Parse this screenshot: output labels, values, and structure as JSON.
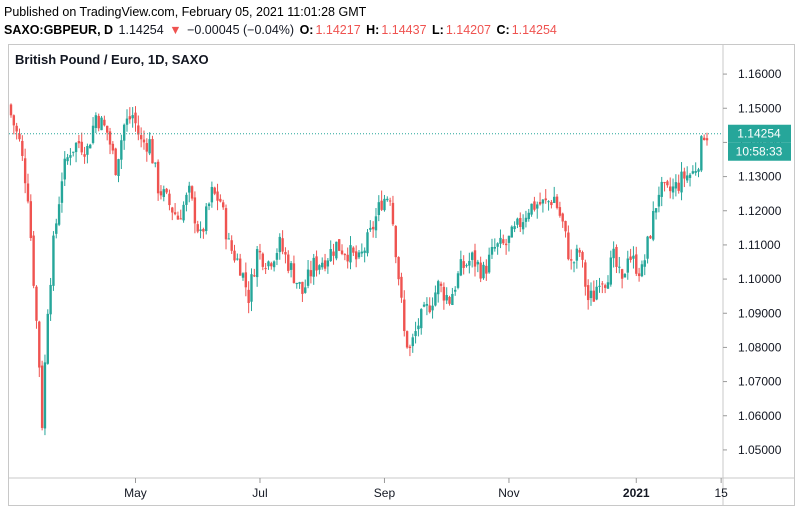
{
  "header": {
    "published": "Published on TradingView.com, February 05, 2021 11:01:28 GMT",
    "symbol": "SAXO:GBPEUR, D",
    "last": "1.14254",
    "down_arrow": "▼",
    "change": "−0.00045 (−0.04%)",
    "o_label": "O:",
    "o_value": "1.14217",
    "h_label": "H:",
    "h_value": "1.14437",
    "l_label": "L:",
    "l_value": "1.14207",
    "c_label": "C:",
    "c_value": "1.14254"
  },
  "colors": {
    "up": "#26a69a",
    "down": "#ef5350",
    "price_tag": "#26a69a"
  },
  "chart_data": {
    "type": "candlestick",
    "title": "British Pound / Euro, 1D, SAXO",
    "ylim": [
      1.045,
      1.165
    ],
    "y_ticks": [
      "1.16000",
      "1.15000",
      "1.14000",
      "1.13000",
      "1.12000",
      "1.11000",
      "1.10000",
      "1.09000",
      "1.08000",
      "1.07000",
      "1.06000",
      "1.05000"
    ],
    "x_ticks": [
      {
        "label": "May",
        "bar": 44
      },
      {
        "label": "Jul",
        "bar": 88
      },
      {
        "label": "Sep",
        "bar": 132
      },
      {
        "label": "Nov",
        "bar": 176
      },
      {
        "label": "2021",
        "bar": 221
      },
      {
        "label": "15",
        "bar": 251
      }
    ],
    "bar_count": 258,
    "last_price_label": "1.14254",
    "countdown_label": "10:58:33",
    "last_price": 1.14254,
    "anchors": [
      [
        0,
        1.148
      ],
      [
        3,
        1.14
      ],
      [
        6,
        1.125
      ],
      [
        8,
        1.1
      ],
      [
        10,
        1.075
      ],
      [
        11,
        1.058
      ],
      [
        13,
        1.092
      ],
      [
        15,
        1.11
      ],
      [
        18,
        1.13
      ],
      [
        21,
        1.138
      ],
      [
        24,
        1.14
      ],
      [
        27,
        1.138
      ],
      [
        30,
        1.148
      ],
      [
        34,
        1.143
      ],
      [
        37,
        1.133
      ],
      [
        40,
        1.145
      ],
      [
        43,
        1.148
      ],
      [
        46,
        1.14
      ],
      [
        49,
        1.14
      ],
      [
        52,
        1.127
      ],
      [
        55,
        1.123
      ],
      [
        59,
        1.118
      ],
      [
        63,
        1.125
      ],
      [
        67,
        1.112
      ],
      [
        71,
        1.125
      ],
      [
        74,
        1.123
      ],
      [
        77,
        1.11
      ],
      [
        81,
        1.104
      ],
      [
        84,
        1.095
      ],
      [
        87,
        1.108
      ],
      [
        91,
        1.105
      ],
      [
        95,
        1.11
      ],
      [
        99,
        1.103
      ],
      [
        103,
        1.096
      ],
      [
        107,
        1.104
      ],
      [
        111,
        1.106
      ],
      [
        115,
        1.11
      ],
      [
        119,
        1.108
      ],
      [
        123,
        1.105
      ],
      [
        127,
        1.113
      ],
      [
        131,
        1.123
      ],
      [
        134,
        1.125
      ],
      [
        137,
        1.101
      ],
      [
        139,
        1.084
      ],
      [
        141,
        1.079
      ],
      [
        144,
        1.087
      ],
      [
        147,
        1.091
      ],
      [
        151,
        1.098
      ],
      [
        155,
        1.094
      ],
      [
        159,
        1.103
      ],
      [
        163,
        1.106
      ],
      [
        167,
        1.102
      ],
      [
        171,
        1.109
      ],
      [
        175,
        1.11
      ],
      [
        179,
        1.115
      ],
      [
        183,
        1.121
      ],
      [
        186,
        1.122
      ],
      [
        189,
        1.122
      ],
      [
        192,
        1.124
      ],
      [
        195,
        1.116
      ],
      [
        198,
        1.104
      ],
      [
        201,
        1.108
      ],
      [
        204,
        1.094
      ],
      [
        206,
        1.095
      ],
      [
        208,
        1.101
      ],
      [
        210,
        1.1
      ],
      [
        213,
        1.106
      ],
      [
        216,
        1.098
      ],
      [
        218,
        1.108
      ],
      [
        220,
        1.105
      ],
      [
        223,
        1.102
      ],
      [
        226,
        1.114
      ],
      [
        229,
        1.126
      ],
      [
        232,
        1.125
      ],
      [
        235,
        1.127
      ],
      [
        238,
        1.13
      ],
      [
        241,
        1.131
      ],
      [
        243,
        1.135
      ],
      [
        245,
        1.143
      ],
      [
        246,
        1.1425
      ]
    ]
  }
}
